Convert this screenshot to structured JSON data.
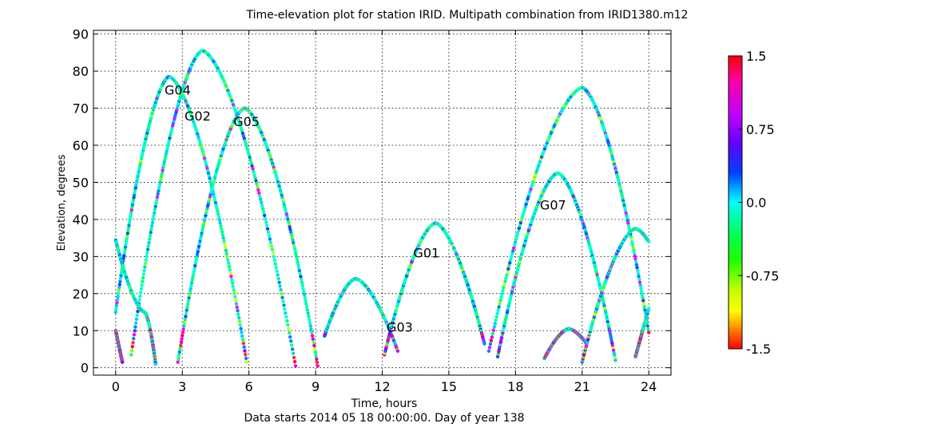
{
  "chart_data": {
    "type": "scatter",
    "title": "Time-elevation plot for station IRID.   Multipath combination from IRID1380.m12",
    "xlabel": "Time, hours",
    "subtitle": "Data starts 2014 05 18 00:00:00.  Day of year 138",
    "ylabel": "Elevation, degrees",
    "xlim": [
      -1,
      25
    ],
    "ylim": [
      -2,
      91
    ],
    "xticks": [
      0,
      3,
      6,
      9,
      12,
      15,
      18,
      21,
      24
    ],
    "yticks": [
      0,
      10,
      20,
      30,
      40,
      50,
      60,
      70,
      80,
      90
    ],
    "grid": true,
    "colorbar": {
      "min": -1.5,
      "max": 1.5,
      "ticks": [
        1.5,
        0.75,
        0.0,
        -0.75,
        -1.5
      ],
      "tick_labels": [
        "1.5",
        "0.75",
        "0.0",
        "-0.75",
        "-1.5"
      ],
      "colormap": "hsv"
    },
    "series": [
      {
        "name": "G04",
        "label_at": [
          2.2,
          75
        ],
        "points": [
          [
            0,
            15
          ],
          [
            2.4,
            78.5
          ],
          [
            5.9,
            1.5
          ]
        ]
      },
      {
        "name": "G02",
        "label_at": [
          3.1,
          68
        ],
        "points": [
          [
            0.7,
            3.5
          ],
          [
            3.9,
            85.5
          ],
          [
            8.1,
            0.5
          ]
        ]
      },
      {
        "name": "G05",
        "label_at": [
          5.3,
          66.5
        ],
        "points": [
          [
            2.8,
            1.5
          ],
          [
            5.8,
            70
          ],
          [
            9.1,
            0.5
          ]
        ]
      },
      {
        "name": "",
        "points": [
          [
            0,
            34.5
          ],
          [
            1.3,
            15
          ],
          [
            1.8,
            1
          ]
        ]
      },
      {
        "name": "",
        "points": [
          [
            0,
            10
          ],
          [
            0.3,
            1.5
          ]
        ]
      },
      {
        "name": "G03",
        "label_at": [
          12.2,
          11
        ],
        "points": [
          [
            9.4,
            8.5
          ],
          [
            10.8,
            24
          ],
          [
            12.7,
            4.5
          ]
        ]
      },
      {
        "name": "G01",
        "label_at": [
          13.4,
          31
        ],
        "points": [
          [
            12.1,
            3.5
          ],
          [
            14.4,
            39
          ],
          [
            16.6,
            6.5
          ]
        ]
      },
      {
        "name": "G07",
        "label_at": [
          19.1,
          44
        ],
        "points": [
          [
            17.2,
            3
          ],
          [
            19.9,
            52.5
          ],
          [
            22.5,
            2
          ]
        ]
      },
      {
        "name": "",
        "points": [
          [
            16.8,
            4.5
          ],
          [
            21.0,
            75.5
          ],
          [
            24.0,
            9.5
          ]
        ]
      },
      {
        "name": "",
        "points": [
          [
            19.3,
            2.5
          ],
          [
            20.4,
            10.5
          ],
          [
            21.2,
            6.5
          ]
        ]
      },
      {
        "name": "",
        "points": [
          [
            21.0,
            1.5
          ],
          [
            23.4,
            37.5
          ],
          [
            24.0,
            34
          ]
        ]
      },
      {
        "name": "",
        "points": [
          [
            23.4,
            3
          ],
          [
            24.0,
            16
          ]
        ]
      }
    ]
  }
}
